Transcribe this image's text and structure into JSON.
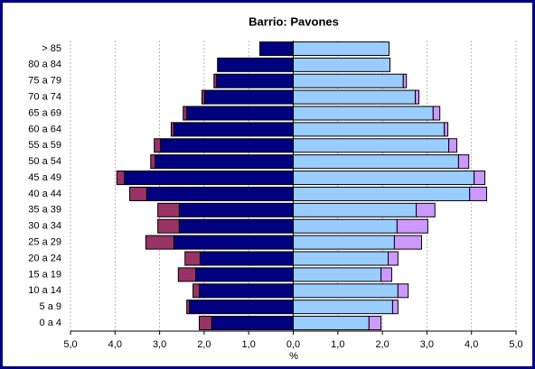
{
  "chart_data": {
    "type": "bar",
    "orientation": "horizontal",
    "stacked": true,
    "title": "Barrio: Pavones",
    "xlabel": "%",
    "categories": [
      "> 85",
      "80 a 84",
      "75 a 79",
      "70 a 74",
      "65 a 69",
      "60 a 64",
      "55 a 59",
      "50 a 54",
      "45 a 49",
      "40 a 44",
      "35 a 39",
      "30 a 34",
      "25 a 29",
      "20 a 24",
      "15 a 19",
      "10 a 14",
      "5 a 9",
      "0 a 4"
    ],
    "series": [
      {
        "color": "#000080",
        "values": [
          -0.75,
          -1.7,
          -1.72,
          -1.99,
          -2.39,
          -2.68,
          -2.98,
          -3.1,
          -3.79,
          -3.29,
          -2.56,
          -2.56,
          -2.68,
          -2.09,
          -2.19,
          -2.11,
          -2.33,
          -1.83
        ]
      },
      {
        "color": "#993366",
        "values": [
          0,
          0,
          -0.06,
          -0.06,
          -0.08,
          -0.06,
          -0.14,
          -0.1,
          -0.17,
          -0.38,
          -0.48,
          -0.48,
          -0.63,
          -0.34,
          -0.39,
          -0.14,
          -0.06,
          -0.28
        ]
      },
      {
        "color": "#99ccff",
        "values": [
          2.15,
          2.17,
          2.47,
          2.74,
          3.14,
          3.39,
          3.49,
          3.71,
          4.06,
          3.96,
          2.76,
          2.33,
          2.27,
          2.13,
          1.97,
          2.35,
          2.23,
          1.7
        ]
      },
      {
        "color": "#cc99ff",
        "values": [
          0,
          0,
          0.07,
          0.08,
          0.15,
          0.08,
          0.18,
          0.23,
          0.24,
          0.38,
          0.42,
          0.69,
          0.61,
          0.22,
          0.24,
          0.23,
          0.12,
          0.27
        ]
      }
    ],
    "xlim": [
      -5,
      5
    ],
    "xticks": [
      {
        "value": -5,
        "label": "5,0"
      },
      {
        "value": -4,
        "label": "4,0"
      },
      {
        "value": -3,
        "label": "3,0"
      },
      {
        "value": -2,
        "label": "2,0"
      },
      {
        "value": -1,
        "label": "1,0"
      },
      {
        "value": 0,
        "label": "0,0"
      },
      {
        "value": 1,
        "label": "1,0"
      },
      {
        "value": 2,
        "label": "2,0"
      },
      {
        "value": 3,
        "label": "3,0"
      },
      {
        "value": 4,
        "label": "4,0"
      },
      {
        "value": 5,
        "label": "5,0"
      }
    ],
    "grid": true
  }
}
